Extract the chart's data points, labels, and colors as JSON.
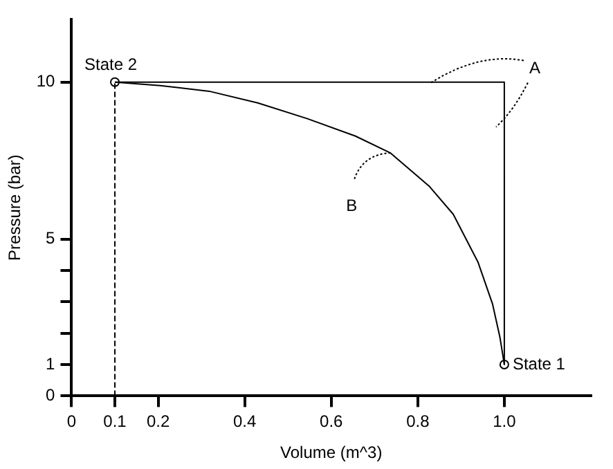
{
  "chart_data": {
    "type": "line",
    "xlabel": "Volume (m^3)",
    "ylabel": "Pressure (bar)",
    "xlim": [
      0,
      1.2
    ],
    "ylim": [
      0,
      12
    ],
    "xticks": [
      0,
      0.1,
      0.2,
      0.4,
      0.6,
      0.8,
      {
        "value": 1,
        "label": "1.0"
      }
    ],
    "yticks": [
      0,
      1,
      {
        "value": 2,
        "label": null
      },
      {
        "value": 3,
        "label": null
      },
      {
        "value": 4,
        "label": null
      },
      5,
      10
    ],
    "grid": false,
    "legend": false,
    "series": [
      {
        "type": "line",
        "color": "#000000",
        "x": [
          0.1,
          1,
          1
        ],
        "values": [
          10,
          10,
          1
        ]
      },
      {
        "type": "line",
        "color": "#000000",
        "x": [
          0.1,
          0.205,
          0.318,
          0.43,
          0.544,
          0.656,
          0.736,
          0.826,
          0.882,
          0.939,
          0.973,
          0.99,
          1
        ],
        "values": [
          10,
          9.89,
          9.71,
          9.34,
          8.84,
          8.28,
          7.75,
          6.69,
          5.79,
          4.27,
          2.92,
          1.86,
          1
        ]
      },
      {
        "type": "scatter",
        "color": "#000000",
        "marker": "circle",
        "x": [
          0.1,
          1
        ],
        "values": [
          10,
          1
        ]
      }
    ],
    "ref_lines": [
      {
        "axis": "x",
        "value": 0.1,
        "color": "#000000",
        "line_style": "dashed"
      }
    ],
    "annotations": [
      {
        "text": "State 2",
        "x": 0.1,
        "y": 10
      },
      {
        "text": "State 1",
        "x": 1,
        "y": 1
      },
      {
        "text": "A",
        "x": 1,
        "y": 9.1
      },
      {
        "text": "B",
        "x": 0.74,
        "y": 7.75
      }
    ]
  }
}
